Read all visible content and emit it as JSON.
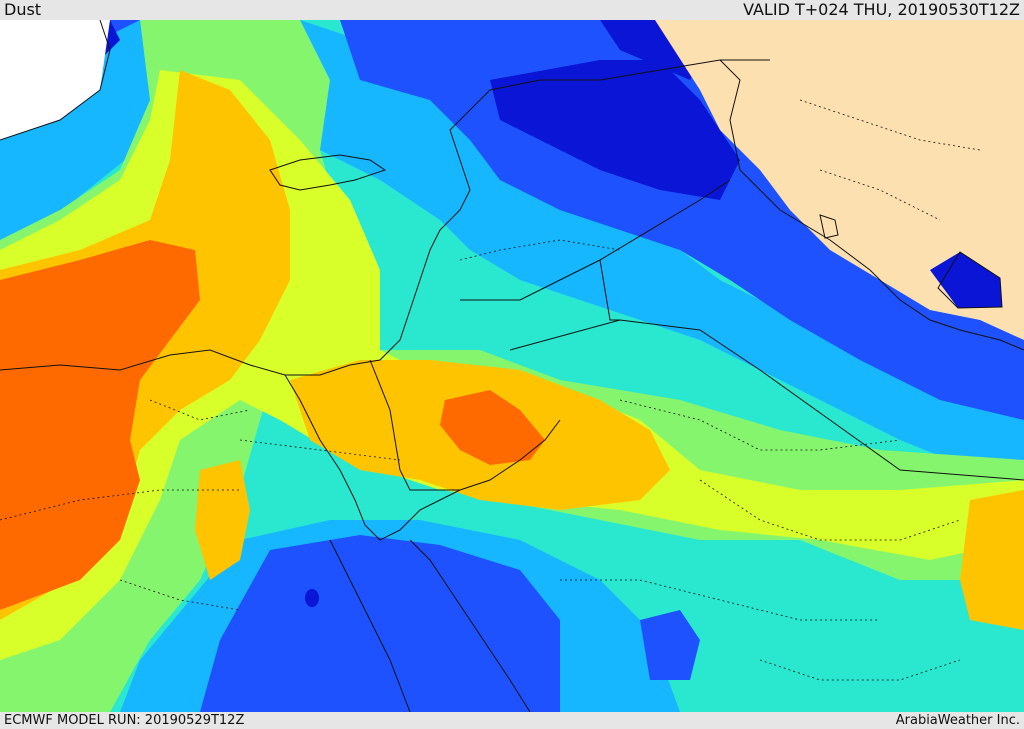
{
  "header": {
    "title": "Dust",
    "valid": "VALID T+024 THU, 20190530T12Z"
  },
  "footer": {
    "model_run": "ECMWF MODEL RUN: 20190529T12Z",
    "credit": "ArabiaWeather Inc."
  },
  "colors": {
    "land": "#fde0b0",
    "no_data": "#ffffff",
    "level_very_low": "#0a15d6",
    "level_low": "#1f52ff",
    "level_medium_low": "#16b7ff",
    "level_medium": "#2ae8cf",
    "level_medium_high": "#86f56e",
    "level_high": "#d9ff2a",
    "level_very_high": "#ffc400",
    "level_extreme": "#ff6a00"
  }
}
